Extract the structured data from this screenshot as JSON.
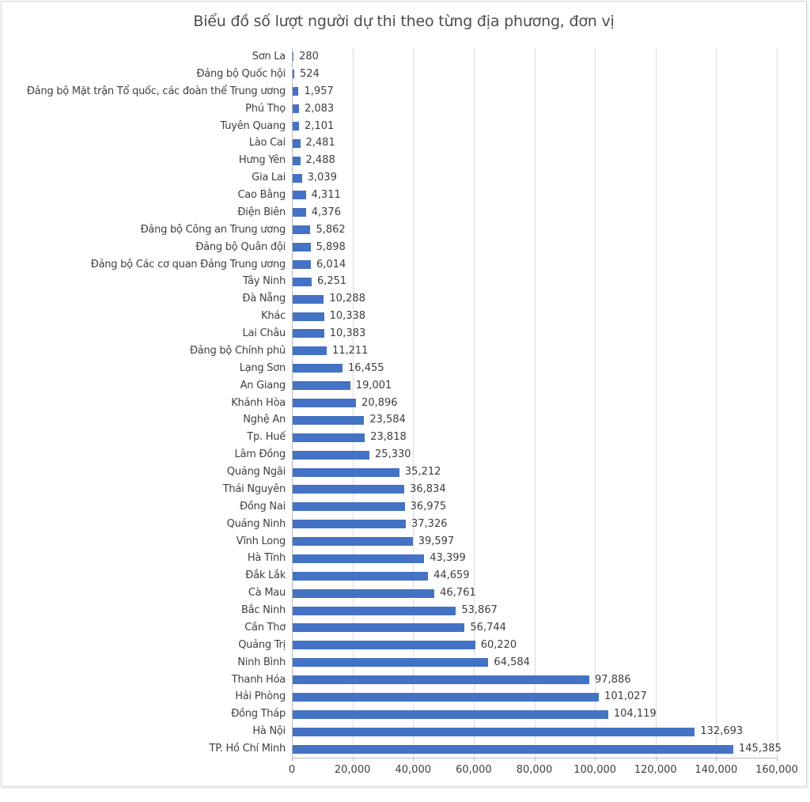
{
  "page": {
    "background_color": "#FFFFFF",
    "frame_border_color": "#D5D5D5"
  },
  "chart_data": {
    "type": "bar",
    "orientation": "horizontal",
    "title": "Biểu đồ số lượt người dự thi theo từng địa phương, đơn vị",
    "xlabel": "",
    "ylabel": "",
    "legend": "none",
    "grid": true,
    "xlim": [
      0,
      160000
    ],
    "xticks": [
      0,
      20000,
      40000,
      60000,
      80000,
      100000,
      120000,
      140000,
      160000
    ],
    "xtick_labels": [
      "0",
      "20,000",
      "40,000",
      "60,000",
      "80,000",
      "100,000",
      "120,000",
      "140,000",
      "160,000"
    ],
    "bar_color": "#4472C4",
    "gridline_color": "#DBDBDB",
    "axis_line_color": "#B9B9B9",
    "text_color": "#404040",
    "title_color": "#4D4D4D",
    "categories": [
      "Sơn La",
      "Đảng bộ Quốc hội",
      "Đảng bộ Mặt trận Tổ quốc, các đoàn thể Trung ương",
      "Phú Thọ",
      "Tuyên Quang",
      "Lào Cai",
      "Hưng Yên",
      "Gia Lai",
      "Cao Bằng",
      "Điện Biên",
      "Đảng bộ Công an Trung ương",
      "Đảng bộ Quân đội",
      "Đảng bộ Các cơ quan Đảng Trung ương",
      "Tây Ninh",
      "Đà Nẵng",
      "Khác",
      "Lai Châu",
      "Đảng bộ Chính phủ",
      "Lạng Sơn",
      "An Giang",
      "Khánh Hòa",
      "Nghệ An",
      "Tp. Huế",
      "Lâm Đồng",
      "Quảng Ngãi",
      "Thái Nguyên",
      "Đồng Nai",
      "Quảng Ninh",
      "Vĩnh Long",
      "Hà Tĩnh",
      "Đắk Lắk",
      "Cà Mau",
      "Bắc Ninh",
      "Cần Thơ",
      "Quảng Trị",
      "Ninh Bình",
      "Thanh Hóa",
      "Hải Phòng",
      "Đồng Tháp",
      "Hà Nội",
      "TP. Hồ Chí Minh"
    ],
    "values": [
      280,
      524,
      1957,
      2083,
      2101,
      2481,
      2488,
      3039,
      4311,
      4376,
      5862,
      5898,
      6014,
      6251,
      10288,
      10338,
      10383,
      11211,
      16455,
      19001,
      20896,
      23584,
      23818,
      25330,
      35212,
      36834,
      36975,
      37326,
      39597,
      43399,
      44659,
      46761,
      53867,
      56744,
      60220,
      64584,
      97886,
      101027,
      104119,
      132693,
      145385
    ],
    "value_labels": [
      "280",
      "524",
      "1,957",
      "2,083",
      "2,101",
      "2,481",
      "2,488",
      "3,039",
      "4,311",
      "4,376",
      "5,862",
      "5,898",
      "6,014",
      "6,251",
      "10,288",
      "10,338",
      "10,383",
      "11,211",
      "16,455",
      "19,001",
      "20,896",
      "23,584",
      "23,818",
      "25,330",
      "35,212",
      "36,834",
      "36,975",
      "37,326",
      "39,597",
      "43,399",
      "44,659",
      "46,761",
      "53,867",
      "56,744",
      "60,220",
      "64,584",
      "97,886",
      "101,027",
      "104,119",
      "132,693",
      "145,385"
    ]
  }
}
